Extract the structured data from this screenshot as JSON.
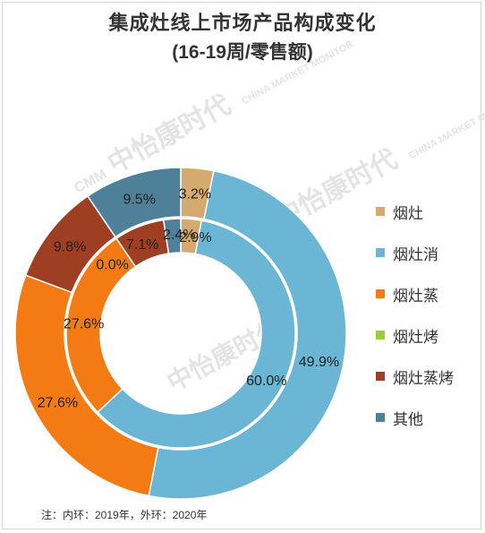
{
  "title": "集成灶线上市场产品构成变化",
  "subtitle": "(16-19周/零售额)",
  "note": "注：内环：2019年，外环：2020年",
  "watermark": {
    "brand": "中怡康时代",
    "text": "CHINA MARKET MONITOR",
    "logo": "CMM"
  },
  "chart_data": {
    "type": "pie",
    "variant": "double-donut",
    "categories": [
      "烟灶",
      "烟灶消",
      "烟灶蒸",
      "烟灶烤",
      "烟灶蒸烤",
      "其他"
    ],
    "colors": [
      "#d4aa6e",
      "#6ab6d4",
      "#f47b13",
      "#9dcc3a",
      "#9e3e22",
      "#4e8099"
    ],
    "series": [
      {
        "ring": "outer",
        "values": [
          3.2,
          49.9,
          27.6,
          0.0,
          9.8,
          9.5
        ]
      },
      {
        "ring": "inner",
        "values": [
          2.9,
          60.0,
          27.6,
          0.0,
          7.1,
          2.4
        ]
      }
    ],
    "labels": {
      "outer": [
        "3.2%",
        "49.9%",
        "27.6%",
        "",
        "9.8%",
        "9.5%"
      ],
      "inner": [
        "2.9%",
        "60.0%",
        "27.6%",
        "0.0%",
        "7.1%",
        "2.4%"
      ]
    },
    "legend_position": "right"
  }
}
